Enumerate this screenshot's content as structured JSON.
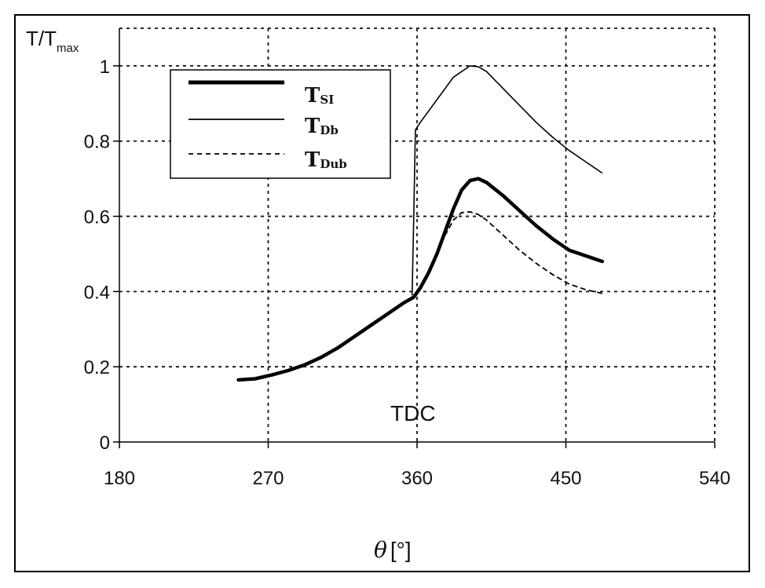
{
  "chart_data": {
    "type": "line",
    "ylabel_main": "T/T",
    "ylabel_sub": "max",
    "xlabel_symbol": "θ",
    "xlabel_unit": "[°]",
    "xlim": [
      180,
      540
    ],
    "ylim": [
      0,
      1.1
    ],
    "x_ticks": [
      180,
      270,
      360,
      450,
      540
    ],
    "y_ticks": [
      0,
      0.2,
      0.4,
      0.6,
      0.8,
      1
    ],
    "x_tick_labels": [
      "180",
      "270",
      "360",
      "450",
      "540"
    ],
    "y_tick_labels": [
      "0",
      "0.2",
      "0.4",
      "0.6",
      "0.8",
      "1"
    ],
    "grid": true,
    "legend_position": "top-left",
    "annotation": "TDC",
    "series": [
      {
        "name": "T",
        "name_sub": "SI",
        "style": "thick",
        "x": [
          252,
          262,
          272,
          282,
          292,
          302,
          312,
          322,
          332,
          342,
          352,
          358,
          362,
          367,
          372,
          377,
          382,
          387,
          392,
          397,
          402,
          412,
          422,
          432,
          442,
          452,
          462,
          472
        ],
        "y": [
          0.165,
          0.168,
          0.178,
          0.19,
          0.205,
          0.225,
          0.25,
          0.28,
          0.31,
          0.34,
          0.37,
          0.385,
          0.41,
          0.45,
          0.5,
          0.56,
          0.62,
          0.67,
          0.695,
          0.7,
          0.69,
          0.655,
          0.615,
          0.575,
          0.54,
          0.51,
          0.495,
          0.48
        ]
      },
      {
        "name": "T",
        "name_sub": "Db",
        "style": "thin",
        "x": [
          357,
          358,
          359,
          362,
          372,
          382,
          392,
          397,
          402,
          412,
          422,
          432,
          442,
          452,
          462,
          472
        ],
        "y": [
          0.39,
          0.6,
          0.83,
          0.85,
          0.91,
          0.97,
          1.0,
          0.998,
          0.985,
          0.94,
          0.895,
          0.85,
          0.81,
          0.775,
          0.745,
          0.715
        ]
      },
      {
        "name": "T",
        "name_sub": "Dub",
        "style": "dashed",
        "x": [
          358,
          362,
          367,
          372,
          377,
          382,
          387,
          392,
          397,
          402,
          412,
          422,
          432,
          442,
          452,
          462,
          472
        ],
        "y": [
          0.385,
          0.41,
          0.45,
          0.5,
          0.55,
          0.59,
          0.61,
          0.612,
          0.605,
          0.59,
          0.55,
          0.51,
          0.475,
          0.445,
          0.42,
          0.405,
          0.395
        ]
      }
    ]
  }
}
